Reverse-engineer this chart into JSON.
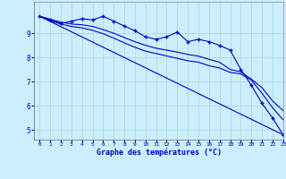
{
  "title": "Graphe des températures (°C)",
  "background_color": "#cceeff",
  "grid_color": "#aadddd",
  "line_color": "#0000cc",
  "xlim": [
    -0.5,
    23
  ],
  "ylim": [
    4.6,
    10.3
  ],
  "yticks": [
    5,
    6,
    7,
    8,
    9
  ],
  "xticks": [
    0,
    1,
    2,
    3,
    4,
    5,
    6,
    7,
    8,
    9,
    10,
    11,
    12,
    13,
    14,
    15,
    16,
    17,
    18,
    19,
    20,
    21,
    22,
    23
  ],
  "series1_x": [
    0,
    1,
    2,
    3,
    4,
    5,
    6,
    7,
    8,
    9,
    10,
    11,
    12,
    13,
    14,
    15,
    16,
    17,
    18,
    19,
    20,
    21,
    22,
    23
  ],
  "series1_y": [
    9.7,
    9.55,
    9.4,
    9.5,
    9.6,
    9.55,
    9.7,
    9.5,
    9.3,
    9.1,
    8.85,
    8.75,
    8.85,
    9.05,
    8.65,
    8.75,
    8.65,
    8.5,
    8.3,
    7.5,
    6.85,
    6.1,
    5.5,
    4.8
  ],
  "series2_x": [
    0,
    23
  ],
  "series2_y": [
    9.7,
    4.8
  ],
  "series3_x": [
    0,
    1,
    2,
    3,
    4,
    5,
    6,
    7,
    8,
    9,
    10,
    11,
    12,
    13,
    14,
    15,
    16,
    17,
    18,
    19,
    20,
    21,
    22,
    23
  ],
  "series3_y": [
    9.7,
    9.58,
    9.46,
    9.38,
    9.35,
    9.28,
    9.15,
    9.0,
    8.82,
    8.65,
    8.5,
    8.38,
    8.3,
    8.22,
    8.12,
    8.05,
    7.92,
    7.8,
    7.5,
    7.4,
    7.1,
    6.75,
    6.2,
    5.8
  ],
  "series4_x": [
    0,
    1,
    2,
    3,
    4,
    5,
    6,
    7,
    8,
    9,
    10,
    11,
    12,
    13,
    14,
    15,
    16,
    17,
    18,
    19,
    20,
    21,
    22,
    23
  ],
  "series4_y": [
    9.7,
    9.52,
    9.38,
    9.28,
    9.22,
    9.12,
    8.98,
    8.8,
    8.6,
    8.42,
    8.26,
    8.16,
    8.06,
    7.96,
    7.86,
    7.8,
    7.66,
    7.56,
    7.38,
    7.32,
    7.06,
    6.52,
    5.92,
    5.42
  ]
}
